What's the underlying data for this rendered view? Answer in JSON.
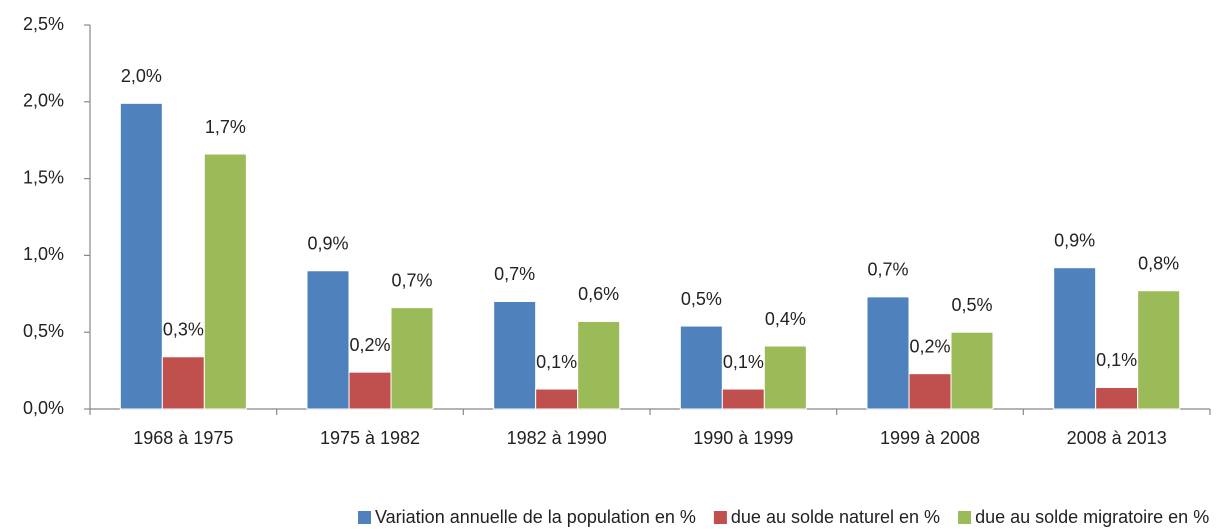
{
  "chart_data": {
    "type": "bar",
    "categories": [
      "1968 à 1975",
      "1975 à 1982",
      "1982 à 1990",
      "1990 à 1999",
      "1999 à 2008",
      "2008 à 2013"
    ],
    "series": [
      {
        "name": "Variation annuelle de la population en %",
        "color": "#4f81bd",
        "values": [
          1.99,
          0.9,
          0.7,
          0.54,
          0.73,
          0.92
        ],
        "value_labels": [
          "2,0%",
          "0,9%",
          "0,7%",
          "0,5%",
          "0,7%",
          "0,9%"
        ]
      },
      {
        "name": "due au solde naturel en %",
        "color": "#c0504d",
        "values": [
          0.34,
          0.24,
          0.13,
          0.13,
          0.23,
          0.14
        ],
        "value_labels": [
          "0,3%",
          "0,2%",
          "0,1%",
          "0,1%",
          "0,2%",
          "0,1%"
        ]
      },
      {
        "name": "due au solde migratoire en %",
        "color": "#9bbb59",
        "values": [
          1.66,
          0.66,
          0.57,
          0.41,
          0.5,
          0.77
        ],
        "value_labels": [
          "1,7%",
          "0,7%",
          "0,6%",
          "0,4%",
          "0,5%",
          "0,8%"
        ]
      }
    ],
    "ylim": [
      0,
      2.5
    ],
    "yticks": [
      {
        "value": 0,
        "label": "0,0%"
      },
      {
        "value": 0.5,
        "label": "0,5%"
      },
      {
        "value": 1,
        "label": "1,0%"
      },
      {
        "value": 1.5,
        "label": "1,5%"
      },
      {
        "value": 2,
        "label": "2,0%"
      },
      {
        "value": 2.5,
        "label": "2,5%"
      }
    ],
    "grid": false,
    "legend": "bottom"
  }
}
